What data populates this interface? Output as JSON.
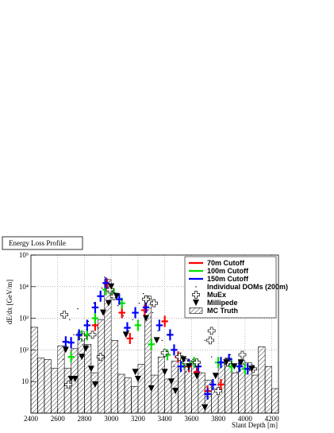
{
  "chart_data": {
    "type": "scatter",
    "title": "Energy Loss Profile",
    "x_label": "Slant Depth [m]",
    "y_label": "dE/dx [GeV/m]",
    "xlim": [
      2400,
      4250
    ],
    "ylim": [
      1,
      100000
    ],
    "log_y": true,
    "grid": true,
    "xticks": [
      2400,
      2600,
      2800,
      3000,
      3200,
      3400,
      3600,
      3800,
      4000,
      4200
    ],
    "yticks": [
      10,
      {
        "value": 100,
        "label": "10²"
      },
      {
        "value": 1000,
        "label": "10³"
      },
      {
        "value": 10000,
        "label": "10⁴"
      },
      {
        "value": 100000,
        "label": "10⁵"
      }
    ],
    "legend": "top-right",
    "series": [
      {
        "name": "70m Cutoff",
        "color": "#ff0000",
        "marker": "bin-cross",
        "x": [
          2880,
          2970,
          3080,
          3140,
          3250,
          3400,
          3500,
          3580,
          3640,
          3720,
          3820
        ],
        "values": [
          600,
          12000,
          1500,
          230,
          1800,
          800,
          60,
          30,
          20,
          5,
          8
        ]
      },
      {
        "name": "100m Cutoff",
        "color": "#00e000",
        "marker": "bin-cross",
        "x": [
          2700,
          2780,
          2820,
          2880,
          2960,
          3020,
          3080,
          3200,
          3300,
          3420,
          3540,
          3620,
          3800,
          3900,
          4000
        ],
        "values": [
          60,
          280,
          300,
          1000,
          8000,
          6000,
          3000,
          600,
          150,
          70,
          40,
          40,
          40,
          30,
          25
        ]
      },
      {
        "name": "150m Cutoff",
        "color": "#0000ff",
        "marker": "bin-cross",
        "x": [
          2660,
          2700,
          2760,
          2820,
          2880,
          2920,
          2960,
          3060,
          3120,
          3180,
          3260,
          3360,
          3440,
          3470,
          3520,
          3580,
          3650,
          3720,
          3760,
          3820,
          3880,
          3960,
          4020
        ],
        "values": [
          180,
          170,
          300,
          600,
          2200,
          5000,
          13000,
          4000,
          500,
          1500,
          2200,
          600,
          300,
          100,
          30,
          35,
          30,
          4,
          8,
          40,
          50,
          30,
          25
        ]
      },
      {
        "name": "Individual DOMs (200m)",
        "color": "#000000",
        "marker": "dot",
        "x": [
          2640,
          2690,
          2720,
          2750,
          2790,
          2830,
          2870,
          2900,
          2930,
          2950,
          2990,
          3010,
          3050,
          3090,
          3130,
          3160,
          3210,
          3240,
          3280,
          3310,
          3350,
          3380,
          3430,
          3470,
          3520,
          3560,
          3610,
          3660,
          3700,
          3750,
          3790,
          3850,
          3890,
          3940,
          3990
        ],
        "values": [
          50,
          900,
          300,
          2000,
          150,
          800,
          3000,
          500,
          9000,
          20000,
          15000,
          7000,
          2500,
          1200,
          400,
          900,
          3000,
          6000,
          5000,
          1500,
          400,
          200,
          300,
          30,
          80,
          20,
          50,
          30,
          200,
          60,
          15,
          40,
          70,
          20,
          35
        ]
      },
      {
        "name": "MuEx",
        "color": "#000000",
        "marker": "open-cross",
        "x": [
          2650,
          2680,
          2790,
          2860,
          2920,
          2990,
          3020,
          3260,
          3320,
          3400,
          3510,
          3560,
          3640,
          3740,
          3750,
          3800,
          3870,
          3980,
          4060
        ],
        "values": [
          1300,
          8,
          250,
          300,
          60,
          8000,
          5000,
          4000,
          3000,
          80,
          60,
          40,
          40,
          200,
          400,
          5,
          40,
          70,
          25
        ]
      },
      {
        "name": "Millipede",
        "color": "#000000",
        "marker": "triangle-down",
        "x": [
          2660,
          2700,
          2730,
          2780,
          2810,
          2850,
          2880,
          2940,
          2980,
          3000,
          3040,
          3110,
          3180,
          3200,
          3260,
          3300,
          3340,
          3400,
          3450,
          3480,
          3540,
          3580,
          3640,
          3700,
          3780,
          3860,
          3920,
          3970,
          4050
        ],
        "values": [
          100,
          12,
          12,
          60,
          110,
          25,
          8,
          1500,
          3000,
          10000,
          5000,
          300,
          20,
          12,
          1000,
          6,
          200,
          20,
          10,
          5,
          50,
          30,
          15,
          1.5,
          15,
          40,
          30,
          40,
          25
        ]
      }
    ],
    "histogram": {
      "name": "MC Truth",
      "bins": [
        2400,
        2450,
        2500,
        2550,
        2600,
        2650,
        2700,
        2750,
        2800,
        2850,
        2900,
        2950,
        3000,
        3050,
        3100,
        3150,
        3200,
        3250,
        3300,
        3350,
        3400,
        3450,
        3500,
        3550,
        3600,
        3650,
        3700,
        3750,
        3800,
        3850,
        3900,
        3950,
        4000,
        4050,
        4100,
        4150,
        4200,
        4250
      ],
      "counts": [
        520,
        55,
        50,
        26,
        135,
        26,
        110,
        370,
        150,
        19,
        890,
        17000,
        200,
        17,
        13,
        7,
        35,
        5000,
        16,
        60,
        12,
        44,
        30,
        46,
        44,
        19,
        11,
        6,
        39,
        55,
        19,
        46,
        39,
        16,
        125,
        30,
        6
      ]
    }
  }
}
